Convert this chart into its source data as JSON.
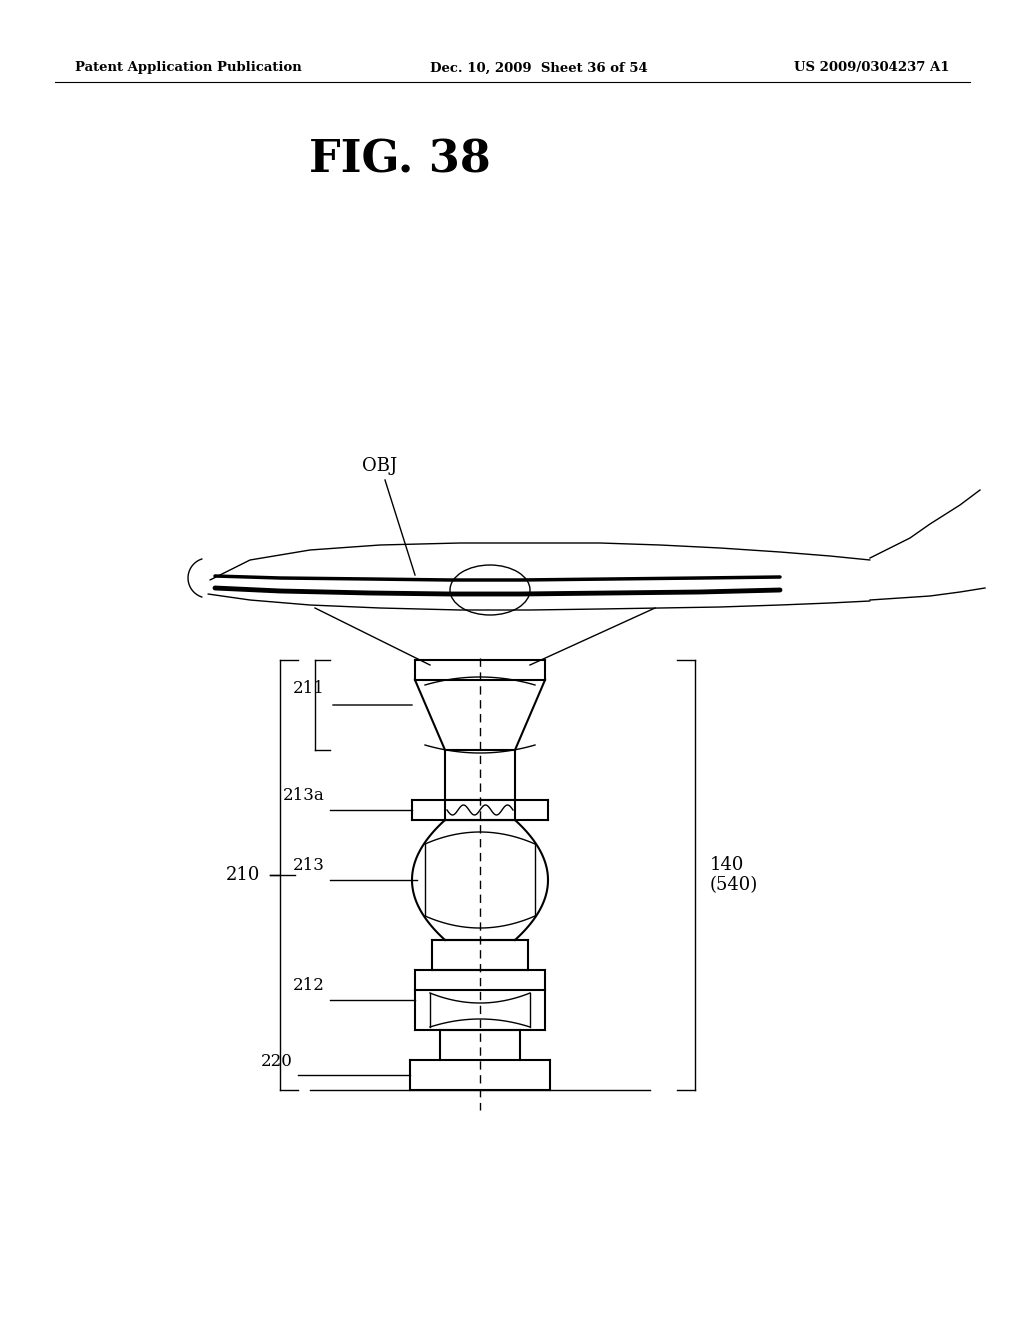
{
  "header_left": "Patent Application Publication",
  "header_mid": "Dec. 10, 2009  Sheet 36 of 54",
  "header_right": "US 2009/0304237 A1",
  "fig_title": "FIG. 38",
  "bg_color": "#ffffff",
  "line_color": "#000000"
}
